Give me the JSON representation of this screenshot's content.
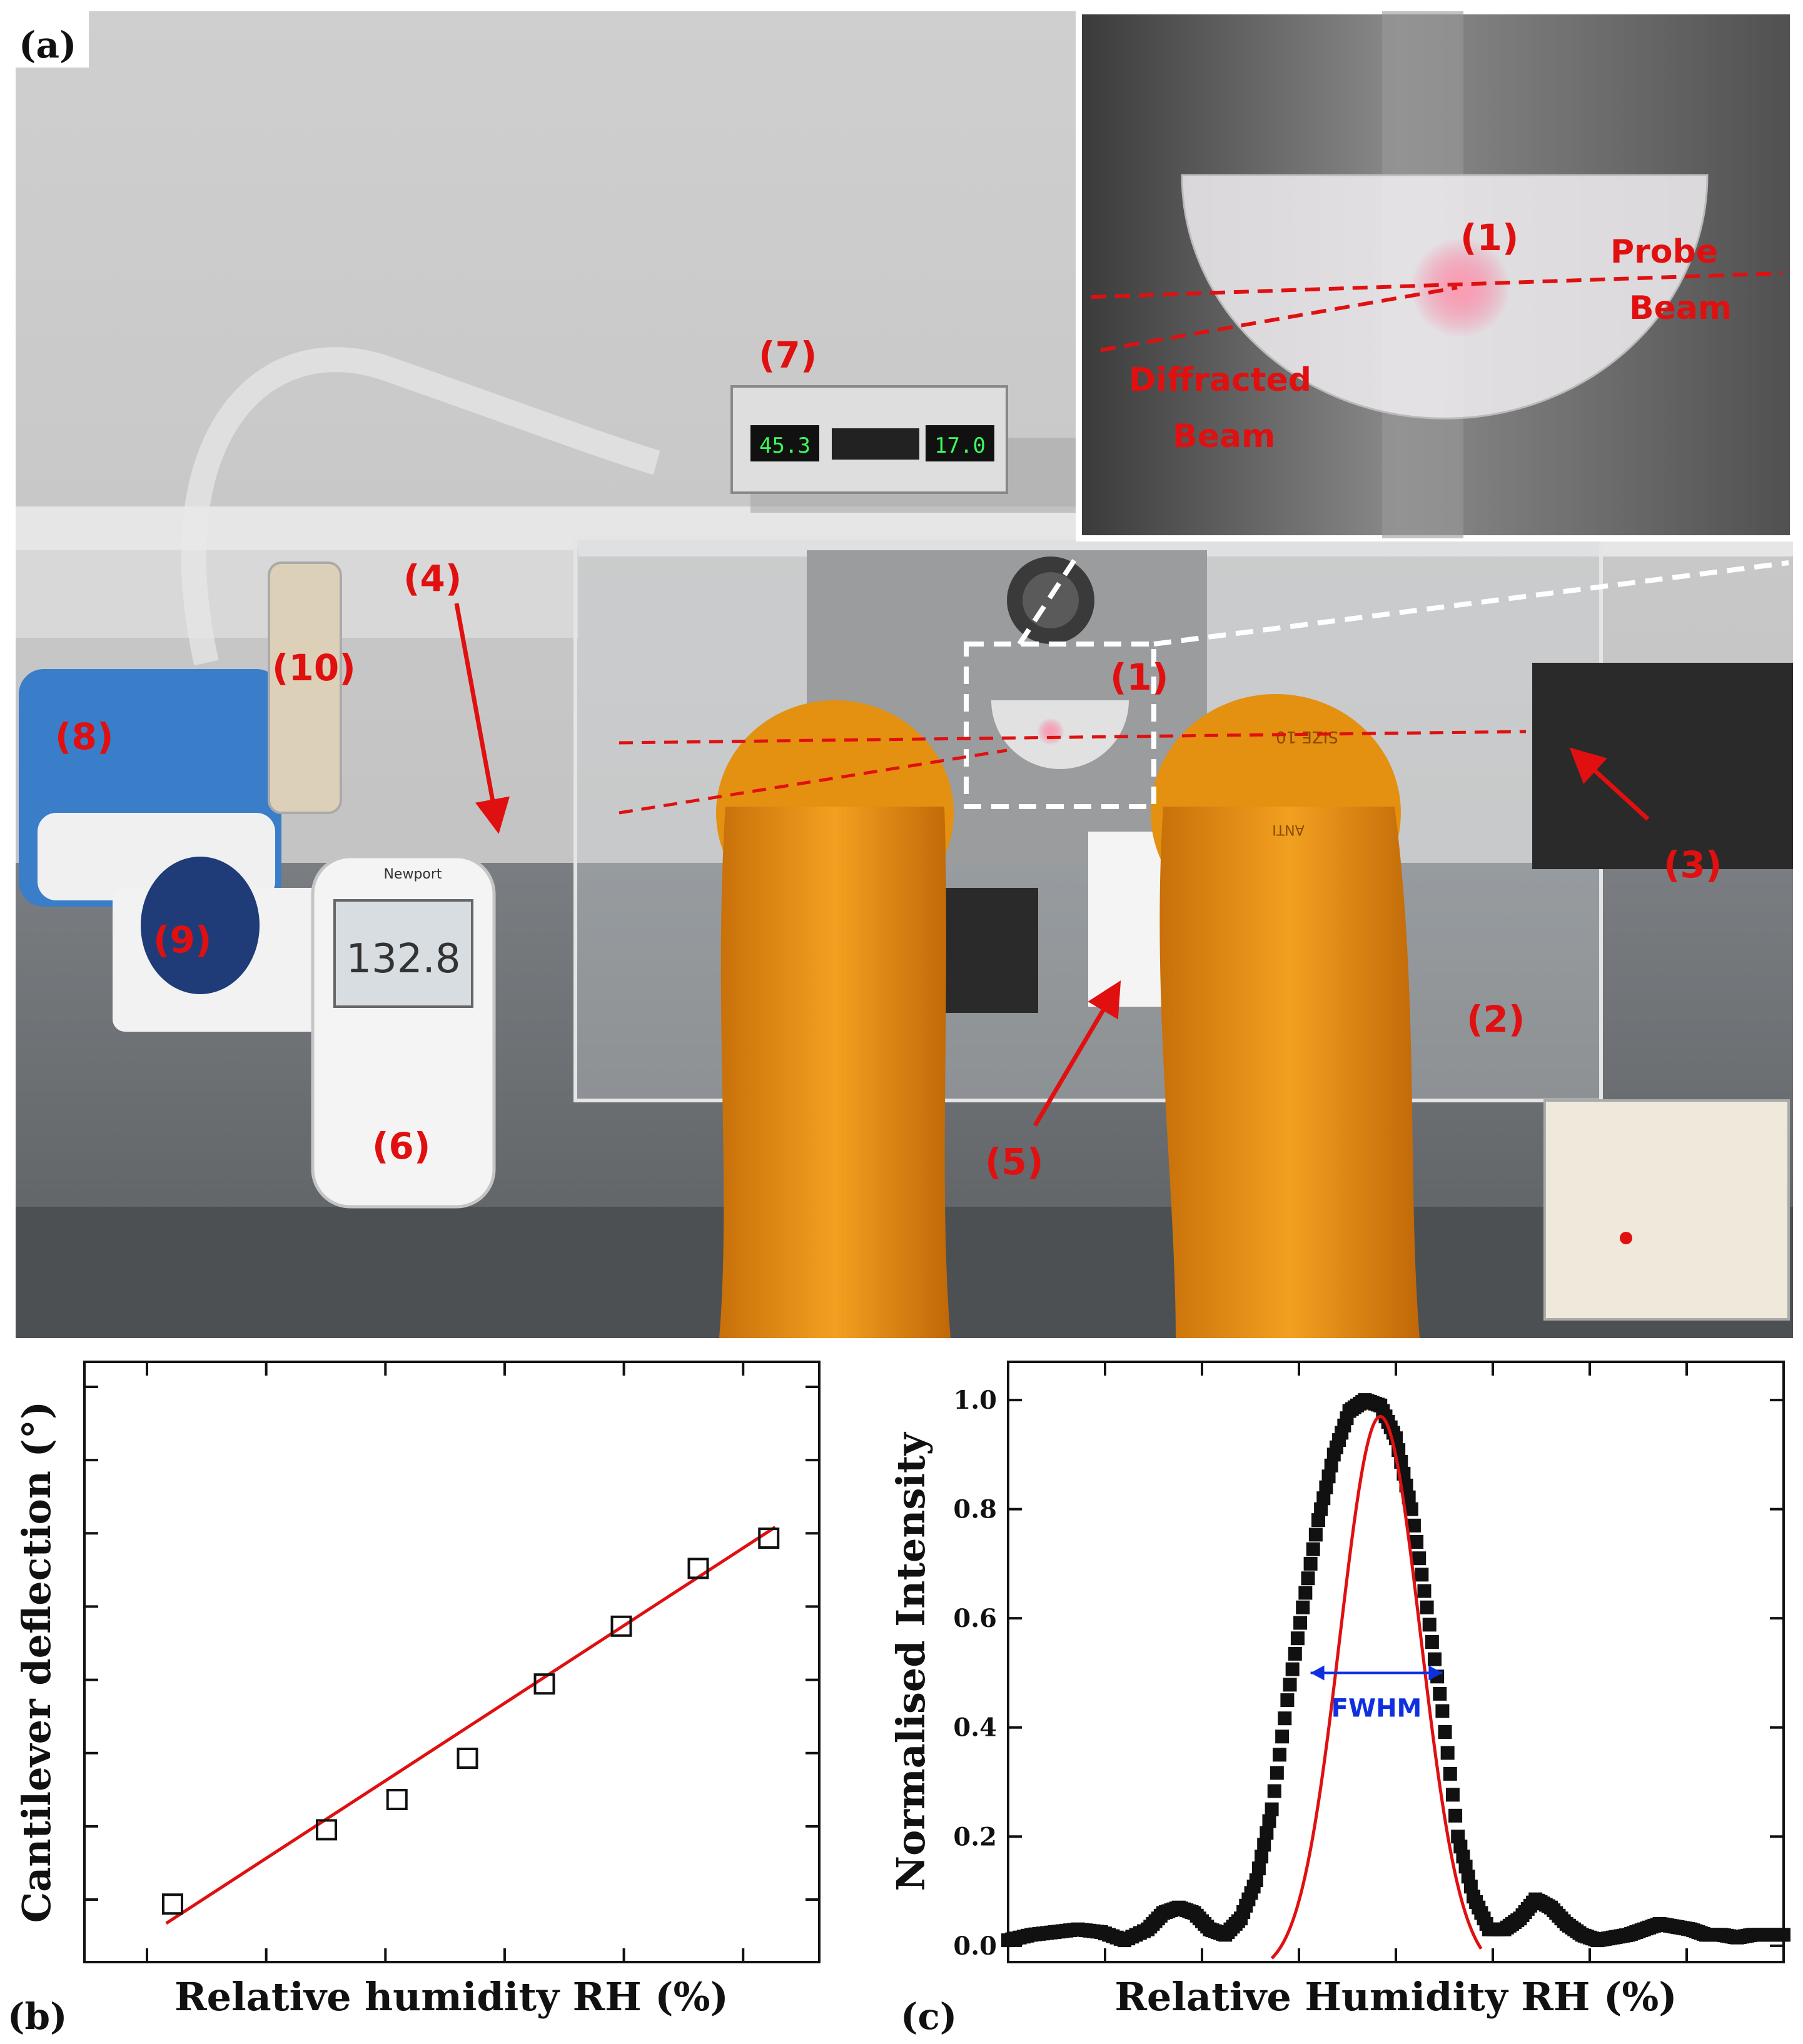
{
  "panel_a": {
    "label": "(a)",
    "callouts": [
      "(1)",
      "(2)",
      "(3)",
      "(4)",
      "(5)",
      "(6)",
      "(7)",
      "(8)",
      "(9)",
      "(10)"
    ],
    "inset_callout": "(1)",
    "inset_labels": [
      "Probe",
      "Beam",
      "Diffracted",
      "Beam"
    ],
    "meter_reading": "132.8",
    "meter_brand": "Newport",
    "controller_left": "45.3",
    "controller_right": "17.0",
    "glove_text": [
      "SIZE 10",
      "ANTI"
    ],
    "colors": {
      "annotation": "#e01010",
      "glove": "#e8900a",
      "bench": "#6e7276"
    }
  },
  "chart_data": [
    {
      "panel": "(b)",
      "type": "scatter",
      "xlabel": "Relative humidity RH (%)",
      "ylabel": "Cantilever deflection (°)",
      "x_ticks_labeled": false,
      "y_ticks_labeled": false,
      "x_tick_count": 6,
      "y_tick_count": 8,
      "xlim": [
        0,
        100
      ],
      "ylim": [
        0,
        100
      ],
      "points": [
        [
          4,
          6
        ],
        [
          28,
          19.5
        ],
        [
          39,
          25
        ],
        [
          50,
          32.5
        ],
        [
          62,
          46
        ],
        [
          74,
          56.5
        ],
        [
          86,
          67
        ],
        [
          97,
          72.5
        ]
      ],
      "fit": {
        "type": "linear",
        "color": "#e01010",
        "x": [
          3,
          98
        ],
        "y": [
          2.5,
          74.5
        ]
      },
      "marker": "open-square"
    },
    {
      "panel": "(c)",
      "type": "scatter",
      "xlabel": "Relative Humidity RH (%)",
      "ylabel": "Normalised Intensity",
      "x_ticks_labeled": false,
      "y_ticks": [
        "0.0",
        "0.2",
        "0.4",
        "0.6",
        "0.8",
        "1.0"
      ],
      "ylim": [
        -0.03,
        1.07
      ],
      "xlim": [
        0,
        100
      ],
      "series": [
        {
          "marker": "filled-square",
          "color": "#111111",
          "x": [
            0,
            3,
            6,
            9,
            12,
            15,
            18,
            20,
            22,
            24,
            26,
            28,
            30,
            32,
            34,
            36,
            38,
            40,
            42,
            44,
            46,
            48,
            50,
            52,
            54,
            56,
            58,
            60,
            62,
            64,
            66,
            68,
            70,
            72,
            74,
            76,
            78,
            80,
            82,
            84,
            86,
            88,
            90,
            92,
            94,
            96,
            98,
            100
          ],
          "y": [
            0.01,
            0.02,
            0.025,
            0.03,
            0.025,
            0.01,
            0.03,
            0.06,
            0.07,
            0.06,
            0.03,
            0.02,
            0.05,
            0.12,
            0.25,
            0.45,
            0.62,
            0.78,
            0.9,
            0.98,
            1.0,
            0.99,
            0.93,
            0.8,
            0.62,
            0.43,
            0.2,
            0.09,
            0.03,
            0.03,
            0.05,
            0.085,
            0.07,
            0.04,
            0.02,
            0.01,
            0.015,
            0.02,
            0.03,
            0.04,
            0.035,
            0.03,
            0.02,
            0.02,
            0.015,
            0.02,
            0.02,
            0.02
          ]
        }
      ],
      "fit": {
        "type": "gaussian",
        "color": "#e01010",
        "peak_x": 48,
        "peak_y": 1.02,
        "from_x": 34,
        "to_x": 61
      },
      "annotation": {
        "text": "FWHM",
        "color": "#1030e0",
        "x_from": 39,
        "x_to": 56,
        "y": 0.5
      }
    }
  ]
}
